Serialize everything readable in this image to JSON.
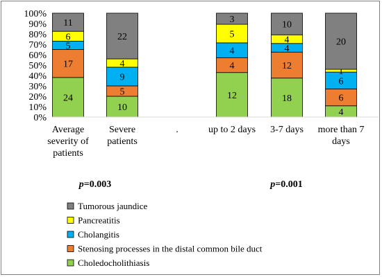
{
  "chart_data": {
    "type": "bar",
    "stacked": "percent",
    "ylim": [
      0,
      100
    ],
    "yticks": [
      "0%",
      "10%",
      "20%",
      "30%",
      "40%",
      "50%",
      "60%",
      "70%",
      "80%",
      "90%",
      "100%"
    ],
    "grid": false,
    "legend_position": "bottom-left",
    "categories": [
      [
        "Average",
        "severity of",
        "patients"
      ],
      [
        "Severe",
        "patients"
      ],
      [
        "."
      ],
      [
        "up to 2 days"
      ],
      [
        "3-7 days"
      ],
      [
        "more than 7",
        "days"
      ]
    ],
    "series": [
      {
        "name": "Choledocholithiasis",
        "color": "#92d050",
        "values": [
          24,
          10,
          null,
          12,
          18,
          4
        ]
      },
      {
        "name": "Stenosing processes in the distal common bile duct",
        "color": "#ed7d31",
        "values": [
          17,
          5,
          null,
          4,
          12,
          6
        ]
      },
      {
        "name": "Cholangitis",
        "color": "#00b0f0",
        "values": [
          5,
          9,
          null,
          4,
          4,
          6
        ]
      },
      {
        "name": "Pancreatitis",
        "color": "#ffff00",
        "values": [
          6,
          4,
          null,
          5,
          4,
          1
        ]
      },
      {
        "name": "Tumorous jaundice",
        "color": "#808080",
        "values": [
          11,
          22,
          null,
          3,
          10,
          20
        ]
      }
    ],
    "annotations": [
      {
        "prefix": "p",
        "text": "=0.003",
        "under_categories": [
          0,
          1
        ]
      },
      {
        "prefix": "p",
        "text": "=0.001",
        "under_categories": [
          3,
          4,
          5
        ]
      }
    ]
  }
}
